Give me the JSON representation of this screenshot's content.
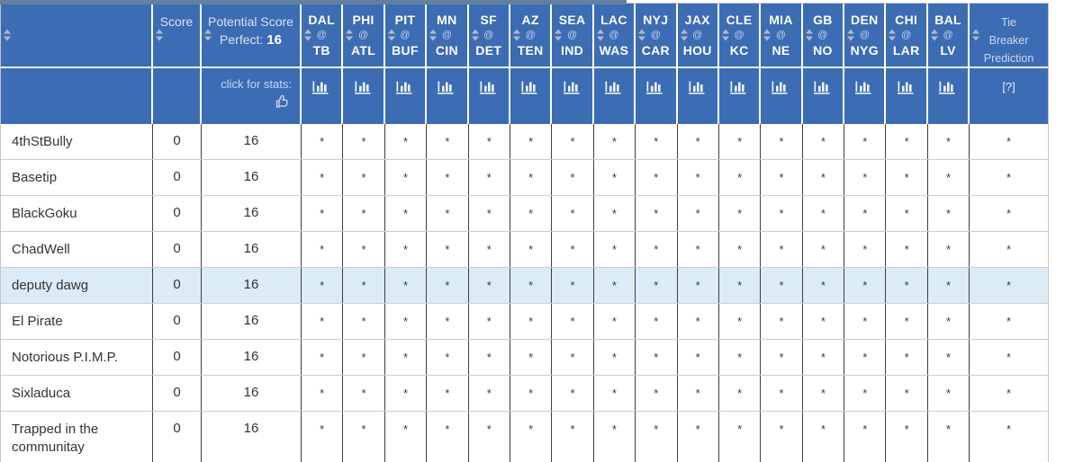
{
  "colors": {
    "header_blue": "#3c6cb4",
    "top_strip": "#63809f",
    "highlight_row": "#dcecf6",
    "sort_arrow": "#aeb9c8",
    "body_text": "#333333"
  },
  "table": {
    "header": {
      "score_label": "Score",
      "potential_line1": "Potential Score",
      "perfect_label": "Perfect:",
      "perfect_value": "16",
      "stats_hint": "click for stats:",
      "tiebreaker": {
        "line1": "Tie",
        "line2": "Breaker",
        "line3": "Prediction",
        "help": "[?]"
      },
      "games": [
        {
          "away": "DAL",
          "separator": "@",
          "home": "TB"
        },
        {
          "away": "PHI",
          "separator": "@",
          "home": "ATL"
        },
        {
          "away": "PIT",
          "separator": "@",
          "home": "BUF"
        },
        {
          "away": "MN",
          "separator": "@",
          "home": "CIN"
        },
        {
          "away": "SF",
          "separator": "@",
          "home": "DET"
        },
        {
          "away": "AZ",
          "separator": "@",
          "home": "TEN"
        },
        {
          "away": "SEA",
          "separator": "@",
          "home": "IND"
        },
        {
          "away": "LAC",
          "separator": "@",
          "home": "WAS"
        },
        {
          "away": "NYJ",
          "separator": "@",
          "home": "CAR"
        },
        {
          "away": "JAX",
          "separator": "@",
          "home": "HOU"
        },
        {
          "away": "CLE",
          "separator": "@",
          "home": "KC"
        },
        {
          "away": "MIA",
          "separator": "@",
          "home": "NE"
        },
        {
          "away": "GB",
          "separator": "@",
          "home": "NO"
        },
        {
          "away": "DEN",
          "separator": "@",
          "home": "NYG"
        },
        {
          "away": "CHI",
          "separator": "@",
          "home": "LAR"
        },
        {
          "away": "BAL",
          "separator": "@",
          "home": "LV"
        }
      ]
    },
    "rows": [
      {
        "name": "4thStBully",
        "score": "0",
        "potential": "16",
        "highlighted": false,
        "picks": [
          "*",
          "*",
          "*",
          "*",
          "*",
          "*",
          "*",
          "*",
          "*",
          "*",
          "*",
          "*",
          "*",
          "*",
          "*",
          "*"
        ],
        "tiebreaker": "*"
      },
      {
        "name": "Basetip",
        "score": "0",
        "potential": "16",
        "highlighted": false,
        "picks": [
          "*",
          "*",
          "*",
          "*",
          "*",
          "*",
          "*",
          "*",
          "*",
          "*",
          "*",
          "*",
          "*",
          "*",
          "*",
          "*"
        ],
        "tiebreaker": "*"
      },
      {
        "name": "BlackGoku",
        "score": "0",
        "potential": "16",
        "highlighted": false,
        "picks": [
          "*",
          "*",
          "*",
          "*",
          "*",
          "*",
          "*",
          "*",
          "*",
          "*",
          "*",
          "*",
          "*",
          "*",
          "*",
          "*"
        ],
        "tiebreaker": "*"
      },
      {
        "name": "ChadWell",
        "score": "0",
        "potential": "16",
        "highlighted": false,
        "picks": [
          "*",
          "*",
          "*",
          "*",
          "*",
          "*",
          "*",
          "*",
          "*",
          "*",
          "*",
          "*",
          "*",
          "*",
          "*",
          "*"
        ],
        "tiebreaker": "*"
      },
      {
        "name": "deputy dawg",
        "score": "0",
        "potential": "16",
        "highlighted": true,
        "picks": [
          "*",
          "*",
          "*",
          "*",
          "*",
          "*",
          "*",
          "*",
          "*",
          "*",
          "*",
          "*",
          "*",
          "*",
          "*",
          "*"
        ],
        "tiebreaker": "*"
      },
      {
        "name": "El Pirate",
        "score": "0",
        "potential": "16",
        "highlighted": false,
        "picks": [
          "*",
          "*",
          "*",
          "*",
          "*",
          "*",
          "*",
          "*",
          "*",
          "*",
          "*",
          "*",
          "*",
          "*",
          "*",
          "*"
        ],
        "tiebreaker": "*"
      },
      {
        "name": "Notorious P.I.M.P.",
        "score": "0",
        "potential": "16",
        "highlighted": false,
        "picks": [
          "*",
          "*",
          "*",
          "*",
          "*",
          "*",
          "*",
          "*",
          "*",
          "*",
          "*",
          "*",
          "*",
          "*",
          "*",
          "*"
        ],
        "tiebreaker": "*"
      },
      {
        "name": "Sixladuca",
        "score": "0",
        "potential": "16",
        "highlighted": false,
        "picks": [
          "*",
          "*",
          "*",
          "*",
          "*",
          "*",
          "*",
          "*",
          "*",
          "*",
          "*",
          "*",
          "*",
          "*",
          "*",
          "*"
        ],
        "tiebreaker": "*"
      },
      {
        "name": "Trapped in the communitay",
        "score": "0",
        "potential": "16",
        "highlighted": false,
        "picks": [
          "*",
          "*",
          "*",
          "*",
          "*",
          "*",
          "*",
          "*",
          "*",
          "*",
          "*",
          "*",
          "*",
          "*",
          "*",
          "*"
        ],
        "tiebreaker": "*"
      }
    ]
  }
}
